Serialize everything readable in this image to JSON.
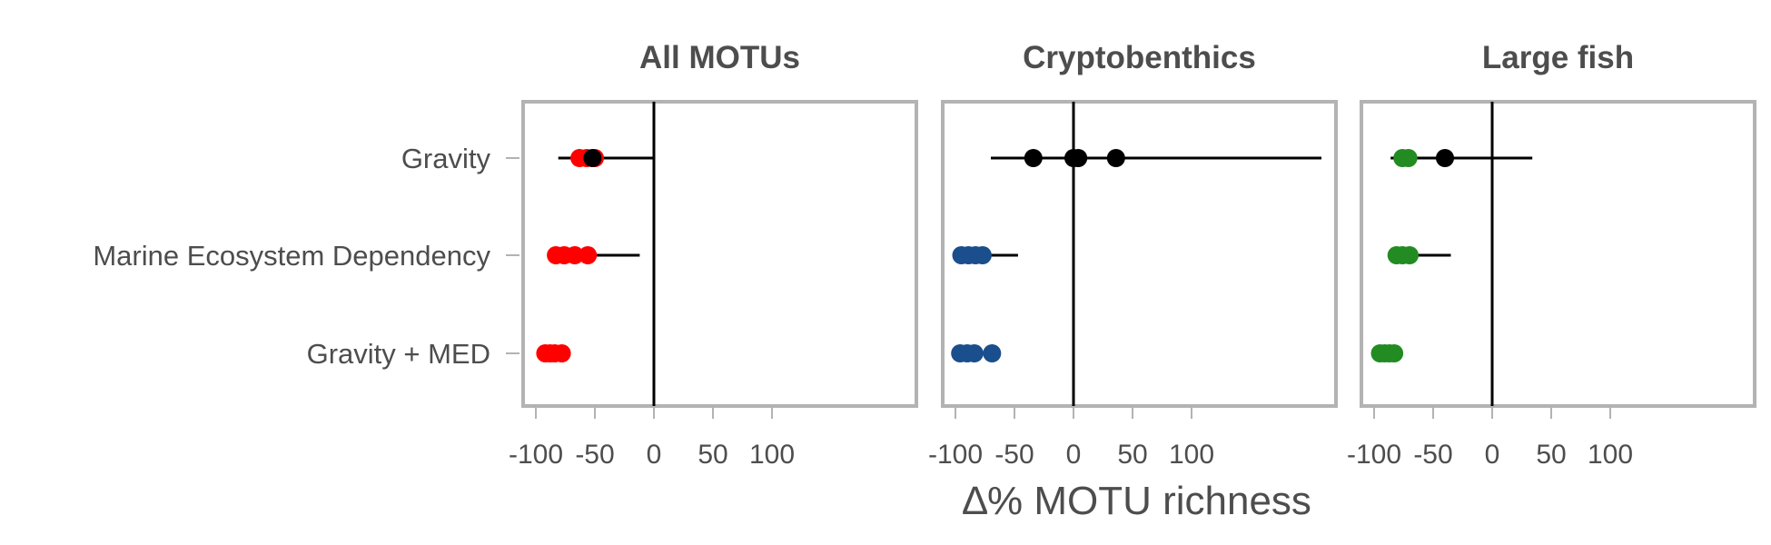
{
  "chart_data": {
    "type": "scatter",
    "xlabel": "∆% MOTU richness",
    "row_labels": [
      "Gravity",
      "Marine Ecosystem Dependency",
      "Gravity + MED"
    ],
    "x_ticks": [
      -100,
      -50,
      0,
      50,
      100
    ],
    "x_tick_labels": [
      "-100",
      "-50",
      "0",
      "50",
      "100"
    ],
    "xlim": [
      -110,
      225
    ],
    "colors": {
      "all_motus": "#ff0000",
      "cryptobenthics": "#1a4e8c",
      "large_fish": "#228b22",
      "black": "#000000"
    },
    "panels": [
      {
        "title": "All MOTUs",
        "color_key": "all_motus",
        "rows": [
          {
            "label": "Gravity",
            "ci": [
              -81,
              -1
            ],
            "points": [
              {
                "x": -63,
                "color": "all_motus"
              },
              {
                "x": -57,
                "color": "all_motus"
              },
              {
                "x": -50,
                "color": "all_motus"
              },
              {
                "x": -52,
                "color": "black"
              }
            ]
          },
          {
            "label": "Marine Ecosystem Dependency",
            "ci": [
              -86,
              -12
            ],
            "points": [
              {
                "x": -83,
                "color": "all_motus"
              },
              {
                "x": -76,
                "color": "all_motus"
              },
              {
                "x": -67,
                "color": "all_motus"
              },
              {
                "x": -56,
                "color": "all_motus"
              }
            ]
          },
          {
            "label": "Gravity + MED",
            "ci": null,
            "points": [
              {
                "x": -92,
                "color": "all_motus"
              },
              {
                "x": -88,
                "color": "all_motus"
              },
              {
                "x": -84,
                "color": "all_motus"
              },
              {
                "x": -78,
                "color": "all_motus"
              }
            ]
          }
        ]
      },
      {
        "title": "Cryptobenthics",
        "color_key": "cryptobenthics",
        "rows": [
          {
            "label": "Gravity",
            "ci": [
              -70,
              210
            ],
            "points": [
              {
                "x": -34,
                "color": "black"
              },
              {
                "x": 0,
                "color": "black"
              },
              {
                "x": 4,
                "color": "black"
              },
              {
                "x": 36,
                "color": "black"
              }
            ]
          },
          {
            "label": "Marine Ecosystem Dependency",
            "ci": [
              -92,
              -47
            ],
            "points": [
              {
                "x": -95,
                "color": "cryptobenthics"
              },
              {
                "x": -89,
                "color": "cryptobenthics"
              },
              {
                "x": -83,
                "color": "cryptobenthics"
              },
              {
                "x": -77,
                "color": "cryptobenthics"
              }
            ]
          },
          {
            "label": "Gravity + MED",
            "ci": null,
            "points": [
              {
                "x": -96,
                "color": "cryptobenthics"
              },
              {
                "x": -90,
                "color": "cryptobenthics"
              },
              {
                "x": -84,
                "color": "cryptobenthics"
              },
              {
                "x": -69,
                "color": "cryptobenthics"
              }
            ]
          }
        ]
      },
      {
        "title": "Large fish",
        "color_key": "large_fish",
        "rows": [
          {
            "label": "Gravity",
            "ci": [
              -86,
              34
            ],
            "points": [
              {
                "x": -76,
                "color": "large_fish"
              },
              {
                "x": -71,
                "color": "large_fish"
              },
              {
                "x": -40,
                "color": "black"
              }
            ]
          },
          {
            "label": "Marine Ecosystem Dependency",
            "ci": [
              -87,
              -35
            ],
            "points": [
              {
                "x": -81,
                "color": "large_fish"
              },
              {
                "x": -76,
                "color": "large_fish"
              },
              {
                "x": -70,
                "color": "large_fish"
              }
            ]
          },
          {
            "label": "Gravity + MED",
            "ci": null,
            "points": [
              {
                "x": -95,
                "color": "large_fish"
              },
              {
                "x": -91,
                "color": "large_fish"
              },
              {
                "x": -87,
                "color": "large_fish"
              },
              {
                "x": -83,
                "color": "large_fish"
              }
            ]
          }
        ]
      }
    ]
  }
}
